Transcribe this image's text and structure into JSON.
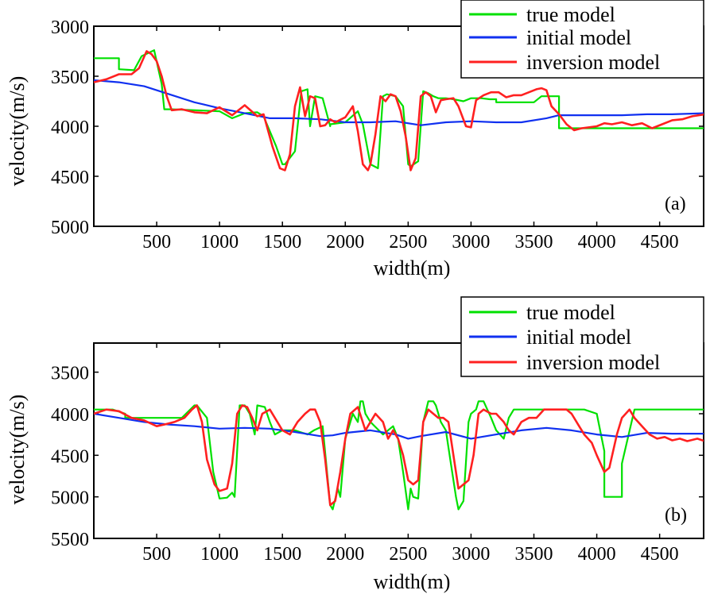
{
  "chart_data": [
    {
      "type": "line",
      "panel_label": "(a)",
      "xlabel": "width(m)",
      "ylabel": "velocity(m/s)",
      "xlim": [
        0,
        4850
      ],
      "ylim": [
        3000,
        5000
      ],
      "y_inverted": true,
      "xticks": [
        500,
        1000,
        1500,
        2000,
        2500,
        3000,
        3500,
        4000,
        4500
      ],
      "yticks": [
        3000,
        3500,
        4000,
        4500,
        5000
      ],
      "legend": [
        "true model",
        "initial model",
        "inversion model"
      ],
      "series": [
        {
          "name": "true model",
          "color": "#00e000",
          "x": [
            0,
            200,
            200,
            320,
            380,
            480,
            540,
            560,
            600,
            620,
            1000,
            1100,
            1200,
            1300,
            1350,
            1450,
            1500,
            1520,
            1600,
            1650,
            1700,
            1720,
            1760,
            1820,
            1880,
            1880,
            2000,
            2100,
            2140,
            2200,
            2260,
            2300,
            2330,
            2400,
            2460,
            2500,
            2520,
            2580,
            2620,
            2660,
            2700,
            2740,
            2800,
            2860,
            2940,
            3000,
            3080,
            3150,
            3200,
            3200,
            3500,
            3560,
            3700,
            3700,
            4860
          ],
          "y": [
            3320,
            3320,
            3430,
            3440,
            3300,
            3240,
            3580,
            3830,
            3830,
            3830,
            3850,
            3920,
            3870,
            3860,
            3900,
            4200,
            4380,
            4380,
            4250,
            3650,
            3630,
            4000,
            3700,
            3720,
            4000,
            3980,
            3960,
            3850,
            3980,
            4380,
            4420,
            3700,
            3680,
            3700,
            3800,
            4380,
            4400,
            4350,
            3650,
            3670,
            3700,
            3720,
            3720,
            3730,
            3750,
            3720,
            3720,
            3730,
            3730,
            3760,
            3760,
            3700,
            3700,
            4020,
            4020
          ]
        },
        {
          "name": "initial model",
          "color": "#1030f0",
          "x": [
            0,
            200,
            400,
            600,
            800,
            1000,
            1200,
            1400,
            1600,
            1800,
            2000,
            2200,
            2400,
            2600,
            2800,
            3000,
            3200,
            3400,
            3600,
            3700,
            3800,
            4000,
            4200,
            4400,
            4600,
            4860
          ],
          "y": [
            3540,
            3560,
            3600,
            3680,
            3760,
            3820,
            3870,
            3920,
            3920,
            3930,
            3960,
            3960,
            3950,
            3990,
            3960,
            3950,
            3960,
            3960,
            3920,
            3890,
            3890,
            3890,
            3890,
            3880,
            3880,
            3870
          ]
        },
        {
          "name": "inversion model",
          "color": "#ff2020",
          "x": [
            0,
            100,
            200,
            300,
            360,
            420,
            460,
            500,
            540,
            580,
            620,
            700,
            800,
            900,
            1000,
            1100,
            1200,
            1300,
            1350,
            1420,
            1480,
            1520,
            1560,
            1600,
            1640,
            1680,
            1720,
            1760,
            1800,
            1840,
            1880,
            1920,
            2000,
            2060,
            2100,
            2140,
            2180,
            2200,
            2240,
            2280,
            2320,
            2360,
            2400,
            2440,
            2480,
            2520,
            2560,
            2600,
            2640,
            2680,
            2720,
            2760,
            2800,
            2860,
            2900,
            2960,
            3000,
            3040,
            3100,
            3160,
            3220,
            3280,
            3340,
            3400,
            3460,
            3520,
            3560,
            3600,
            3640,
            3700,
            3760,
            3820,
            3880,
            3940,
            4000,
            4060,
            4120,
            4200,
            4280,
            4360,
            4440,
            4520,
            4600,
            4680,
            4760,
            4860
          ],
          "y": [
            3560,
            3530,
            3480,
            3480,
            3420,
            3250,
            3280,
            3350,
            3500,
            3700,
            3840,
            3830,
            3860,
            3870,
            3810,
            3890,
            3790,
            3900,
            3880,
            4200,
            4420,
            4440,
            4280,
            3800,
            3610,
            3900,
            3700,
            3720,
            4000,
            3990,
            3930,
            3960,
            3910,
            3800,
            4050,
            4380,
            4440,
            4380,
            4080,
            3700,
            3750,
            3680,
            3700,
            3850,
            4100,
            4440,
            4320,
            3700,
            3660,
            3700,
            3860,
            3740,
            3730,
            3720,
            3800,
            4000,
            4010,
            3740,
            3690,
            3660,
            3660,
            3710,
            3690,
            3690,
            3660,
            3630,
            3620,
            3640,
            3800,
            3880,
            3980,
            4040,
            4020,
            4010,
            4000,
            3970,
            3980,
            3960,
            3990,
            3970,
            4020,
            3980,
            3940,
            3930,
            3900,
            3880
          ]
        }
      ]
    },
    {
      "type": "line",
      "panel_label": "(b)",
      "xlabel": "width(m)",
      "ylabel": "velocity(m/s)",
      "xlim": [
        0,
        4850
      ],
      "ylim": [
        3150,
        5500
      ],
      "y_inverted": true,
      "xticks": [
        500,
        1000,
        1500,
        2000,
        2500,
        3000,
        3500,
        4000,
        4500
      ],
      "yticks": [
        3500,
        4000,
        4500,
        5000,
        5500
      ],
      "legend": [
        "true model",
        "initial model",
        "inversion model"
      ],
      "series": [
        {
          "name": "true model",
          "color": "#00e000",
          "x": [
            0,
            150,
            250,
            250,
            500,
            700,
            800,
            820,
            900,
            950,
            1000,
            1060,
            1100,
            1120,
            1160,
            1200,
            1240,
            1280,
            1300,
            1360,
            1400,
            1440,
            1500,
            1600,
            1700,
            1750,
            1820,
            1880,
            1900,
            1940,
            1960,
            2000,
            2060,
            2100,
            2120,
            2140,
            2160,
            2200,
            2300,
            2380,
            2420,
            2460,
            2500,
            2520,
            2540,
            2580,
            2620,
            2660,
            2700,
            2720,
            2760,
            2800,
            2840,
            2880,
            2900,
            2940,
            2980,
            3000,
            3040,
            3060,
            3100,
            3160,
            3200,
            3260,
            3300,
            3340,
            3400,
            3460,
            3500,
            3560,
            3600,
            3700,
            3800,
            3900,
            4000,
            4060,
            4060,
            4200,
            4200,
            4300,
            4860
          ],
          "y": [
            3950,
            3950,
            4000,
            4050,
            4050,
            4050,
            3900,
            3900,
            4050,
            4700,
            5020,
            5010,
            4950,
            5000,
            3900,
            3900,
            4000,
            4250,
            3900,
            3920,
            4100,
            4250,
            4200,
            4200,
            4250,
            4200,
            4150,
            5100,
            5150,
            4900,
            5000,
            4300,
            4000,
            4100,
            3850,
            3850,
            4000,
            4100,
            4250,
            4150,
            4300,
            4700,
            5150,
            4900,
            5000,
            5020,
            4100,
            3850,
            3850,
            3900,
            4100,
            4200,
            4600,
            5000,
            5150,
            5050,
            4100,
            4000,
            3950,
            3850,
            3850,
            4050,
            4200,
            4300,
            4050,
            3950,
            3950,
            3950,
            3950,
            3950,
            3950,
            3950,
            3950,
            3950,
            4000,
            4450,
            5000,
            5000,
            4600,
            3950,
            3950
          ]
        },
        {
          "name": "initial model",
          "color": "#1030f0",
          "x": [
            0,
            200,
            400,
            600,
            800,
            1000,
            1200,
            1400,
            1600,
            1800,
            1900,
            2000,
            2200,
            2400,
            2500,
            2600,
            2800,
            3000,
            3200,
            3400,
            3600,
            3800,
            4000,
            4200,
            4400,
            4600,
            4860
          ],
          "y": [
            4000,
            4050,
            4100,
            4130,
            4150,
            4180,
            4170,
            4180,
            4220,
            4270,
            4260,
            4230,
            4200,
            4250,
            4300,
            4270,
            4220,
            4300,
            4250,
            4200,
            4170,
            4200,
            4250,
            4280,
            4230,
            4240,
            4240
          ]
        },
        {
          "name": "inversion model",
          "color": "#ff2020",
          "x": [
            0,
            100,
            200,
            300,
            400,
            500,
            560,
            640,
            720,
            780,
            820,
            860,
            900,
            960,
            1000,
            1060,
            1100,
            1140,
            1180,
            1220,
            1260,
            1300,
            1340,
            1400,
            1460,
            1500,
            1560,
            1620,
            1680,
            1720,
            1760,
            1800,
            1840,
            1880,
            1920,
            1960,
            2000,
            2040,
            2100,
            2160,
            2200,
            2240,
            2300,
            2340,
            2380,
            2420,
            2460,
            2500,
            2540,
            2580,
            2620,
            2660,
            2700,
            2740,
            2780,
            2820,
            2860,
            2900,
            2940,
            2980,
            3020,
            3060,
            3100,
            3160,
            3200,
            3260,
            3300,
            3340,
            3400,
            3460,
            3520,
            3580,
            3640,
            3700,
            3760,
            3800,
            3860,
            3900,
            3960,
            4000,
            4060,
            4100,
            4160,
            4200,
            4260,
            4300,
            4360,
            4420,
            4480,
            4540,
            4600,
            4660,
            4720,
            4800,
            4860
          ],
          "y": [
            4000,
            3950,
            3970,
            4050,
            4080,
            4150,
            4130,
            4100,
            4050,
            3950,
            3900,
            4100,
            4550,
            4850,
            4930,
            4900,
            4600,
            4000,
            3900,
            3920,
            4050,
            4200,
            4000,
            3950,
            4100,
            4200,
            4250,
            4100,
            4000,
            3950,
            3950,
            4100,
            4550,
            5100,
            5050,
            4700,
            4300,
            4000,
            3920,
            4200,
            4100,
            4000,
            4100,
            4300,
            4200,
            4300,
            4500,
            4800,
            4850,
            4800,
            4100,
            3950,
            4000,
            4050,
            4050,
            4100,
            4500,
            4900,
            4850,
            4800,
            4500,
            4000,
            3950,
            4000,
            4000,
            4100,
            4200,
            4250,
            4100,
            4050,
            4050,
            3950,
            3950,
            3950,
            3950,
            4000,
            4150,
            4250,
            4350,
            4500,
            4700,
            4650,
            4250,
            4050,
            3950,
            4050,
            4150,
            4250,
            4300,
            4280,
            4320,
            4300,
            4330,
            4300,
            4330
          ]
        }
      ]
    }
  ]
}
